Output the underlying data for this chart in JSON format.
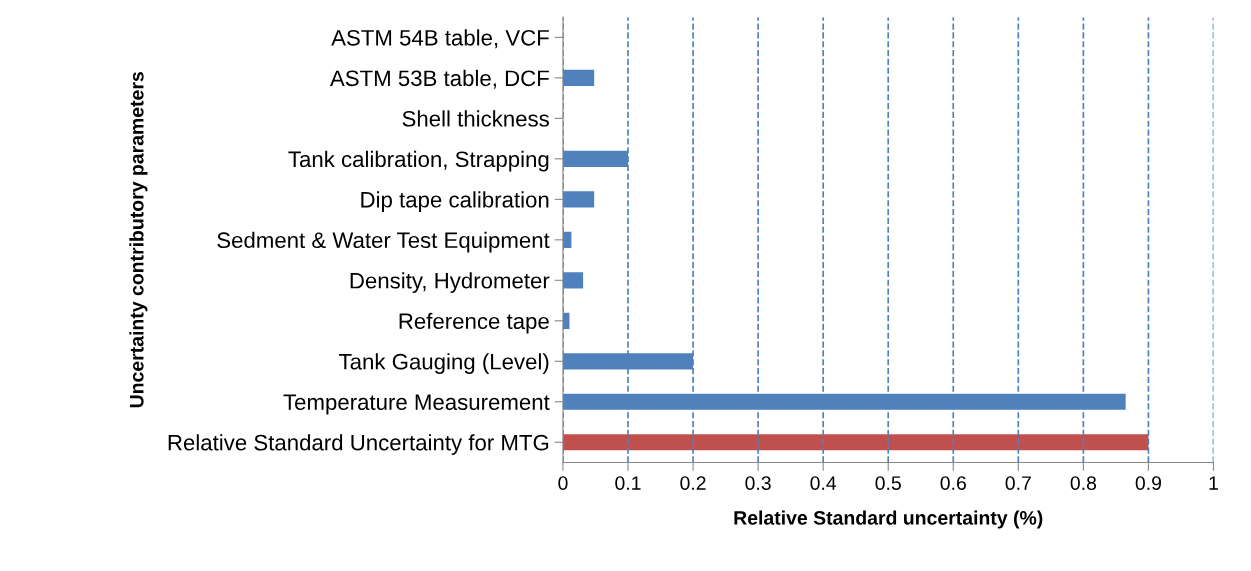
{
  "chart_data": {
    "type": "bar",
    "orientation": "horizontal",
    "xlabel": "Relative Standard uncertainty (%)",
    "ylabel": "Uncertainty contributory parameters",
    "categories": [
      "ASTM 54B table, VCF",
      "ASTM 53B table, DCF",
      "Shell thickness",
      "Tank calibration, Strapping",
      "Dip tape calibration",
      "Sedment & Water Test Equipment",
      "Density, Hydrometer",
      "Reference tape",
      "Tank Gauging (Level)",
      "Temperature Measurement",
      "Relative Standard Uncertainty for MTG"
    ],
    "values": [
      0,
      0.048,
      0,
      0.1,
      0.048,
      0.013,
      0.031,
      0.01,
      0.2,
      0.865,
      0.9
    ],
    "colors": [
      "#4f81bd",
      "#4f81bd",
      "#4f81bd",
      "#4f81bd",
      "#4f81bd",
      "#4f81bd",
      "#4f81bd",
      "#4f81bd",
      "#4f81bd",
      "#4f81bd",
      "#c0504d"
    ],
    "xlim": [
      0,
      1
    ],
    "xticks": [
      0,
      0.1,
      0.2,
      0.3,
      0.4,
      0.5,
      0.6,
      0.7,
      0.8,
      0.9,
      1
    ],
    "grid": "x",
    "line_style": "dashed",
    "legend": false
  }
}
